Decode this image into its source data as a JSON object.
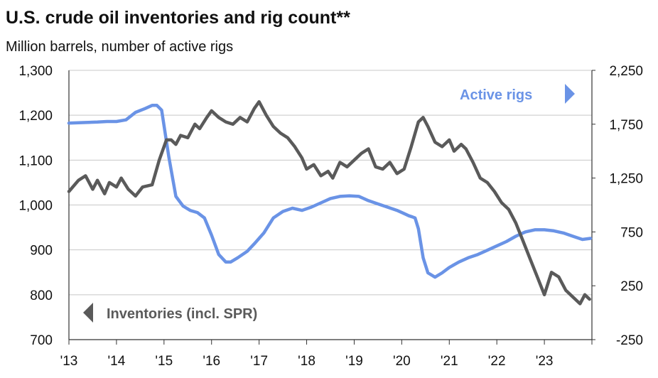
{
  "chart_data": {
    "type": "line",
    "title": "U.S. crude oil inventories and rig count**",
    "subtitle": "Million barrels, number of active rigs",
    "x_ticks": [
      "'13",
      "'14",
      "'15",
      "'16",
      "'17",
      "'18",
      "'19",
      "'20",
      "'21",
      "'22",
      "'23"
    ],
    "x_range": [
      2013,
      2024
    ],
    "y_left": {
      "ticks": [
        "1,300",
        "1,200",
        "1,100",
        "1,000",
        "900",
        "800",
        "700"
      ],
      "range": [
        700,
        1300
      ]
    },
    "y_right": {
      "ticks": [
        "2,250",
        "1,750",
        "1,250",
        "750",
        "250",
        "-250"
      ],
      "range": [
        -250,
        2250
      ]
    },
    "grid": true,
    "series": [
      {
        "name": "Inventories (incl. SPR)",
        "axis": "left",
        "color": "#5a5a5a",
        "marker": "left-arrow",
        "x": [
          2013.0,
          2013.2,
          2013.35,
          2013.5,
          2013.6,
          2013.75,
          2013.85,
          2014.0,
          2014.1,
          2014.25,
          2014.4,
          2014.55,
          2014.75,
          2014.9,
          2015.05,
          2015.15,
          2015.25,
          2015.35,
          2015.5,
          2015.65,
          2015.75,
          2015.9,
          2016.0,
          2016.15,
          2016.3,
          2016.45,
          2016.6,
          2016.75,
          2016.9,
          2017.0,
          2017.15,
          2017.3,
          2017.45,
          2017.6,
          2017.75,
          2017.9,
          2018.0,
          2018.15,
          2018.3,
          2018.45,
          2018.55,
          2018.7,
          2018.85,
          2019.0,
          2019.15,
          2019.3,
          2019.45,
          2019.6,
          2019.75,
          2019.9,
          2020.05,
          2020.2,
          2020.35,
          2020.45,
          2020.55,
          2020.7,
          2020.85,
          2021.0,
          2021.1,
          2021.25,
          2021.35,
          2021.5,
          2021.65,
          2021.8,
          2021.95,
          2022.1,
          2022.25,
          2022.4,
          2022.55,
          2022.7,
          2022.85,
          2023.0,
          2023.15,
          2023.3,
          2023.45,
          2023.6,
          2023.75,
          2023.85,
          2023.95
        ],
        "y": [
          1030,
          1055,
          1065,
          1035,
          1055,
          1025,
          1050,
          1040,
          1060,
          1035,
          1020,
          1040,
          1045,
          1100,
          1145,
          1145,
          1135,
          1155,
          1150,
          1180,
          1170,
          1195,
          1210,
          1195,
          1185,
          1180,
          1195,
          1185,
          1215,
          1230,
          1200,
          1175,
          1160,
          1150,
          1130,
          1105,
          1080,
          1090,
          1065,
          1075,
          1060,
          1095,
          1085,
          1100,
          1115,
          1125,
          1085,
          1080,
          1095,
          1070,
          1080,
          1130,
          1185,
          1195,
          1175,
          1140,
          1130,
          1145,
          1120,
          1135,
          1125,
          1095,
          1060,
          1050,
          1030,
          1005,
          990,
          960,
          920,
          880,
          840,
          800,
          850,
          840,
          810,
          795,
          780,
          800,
          790
        ]
      },
      {
        "name": "Active rigs",
        "axis": "right",
        "color": "#6a93e6",
        "marker": "right-arrow",
        "x": [
          2013.0,
          2013.3,
          2013.6,
          2013.8,
          2014.0,
          2014.2,
          2014.4,
          2014.6,
          2014.75,
          2014.85,
          2014.95,
          2015.1,
          2015.25,
          2015.4,
          2015.55,
          2015.7,
          2015.85,
          2016.0,
          2016.15,
          2016.3,
          2016.4,
          2016.55,
          2016.75,
          2016.9,
          2017.1,
          2017.3,
          2017.5,
          2017.7,
          2017.9,
          2018.1,
          2018.3,
          2018.5,
          2018.7,
          2018.9,
          2019.1,
          2019.3,
          2019.5,
          2019.7,
          2019.9,
          2020.05,
          2020.15,
          2020.22,
          2020.28,
          2020.35,
          2020.45,
          2020.55,
          2020.7,
          2020.85,
          2021.0,
          2021.2,
          2021.4,
          2021.6,
          2021.8,
          2022.0,
          2022.2,
          2022.4,
          2022.6,
          2022.8,
          2023.0,
          2023.2,
          2023.4,
          2023.6,
          2023.8,
          2023.97
        ],
        "y": [
          1760,
          1765,
          1770,
          1775,
          1775,
          1790,
          1860,
          1895,
          1925,
          1925,
          1880,
          1450,
          1080,
          990,
          950,
          930,
          880,
          720,
          540,
          470,
          470,
          510,
          570,
          640,
          740,
          880,
          940,
          970,
          950,
          980,
          1020,
          1060,
          1080,
          1085,
          1080,
          1040,
          1010,
          980,
          950,
          920,
          900,
          890,
          880,
          780,
          510,
          370,
          330,
          370,
          420,
          470,
          510,
          540,
          580,
          620,
          660,
          710,
          750,
          770,
          770,
          760,
          740,
          710,
          680,
          690
        ]
      }
    ]
  }
}
